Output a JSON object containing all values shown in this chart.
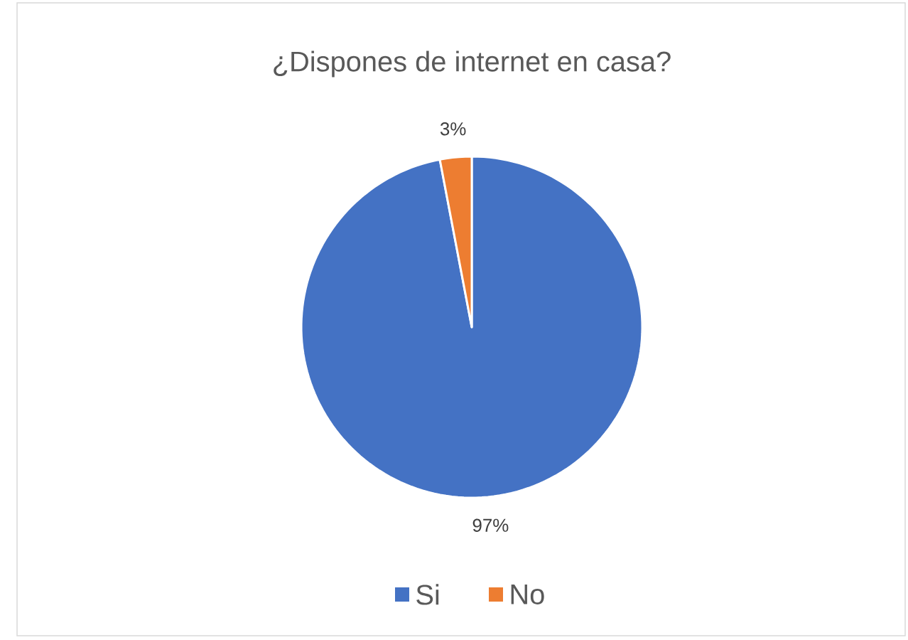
{
  "chart_data": {
    "type": "pie",
    "title": "¿Dispones de internet en casa?",
    "categories": [
      "Si",
      "No"
    ],
    "values": [
      97,
      3
    ],
    "value_labels": [
      "97%",
      "3%"
    ],
    "colors": [
      "#4472c4",
      "#ed7d31"
    ],
    "legend": "bottom"
  }
}
